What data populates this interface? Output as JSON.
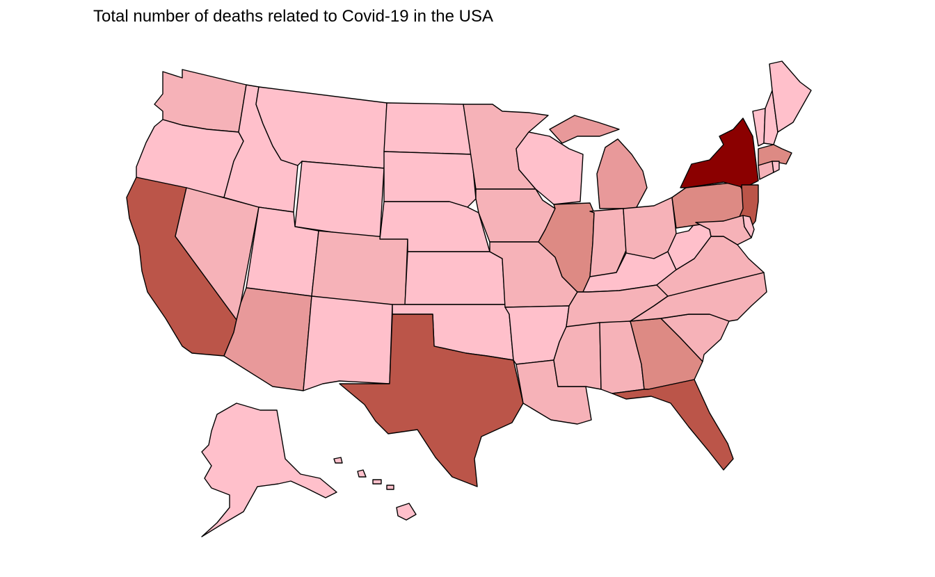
{
  "title": "Total number of deaths related to Covid-19 in the USA",
  "colors": {
    "background": "#ffffff",
    "border": "#000000",
    "scale": {
      "lowest": "#ffc0cb",
      "low": "#f6b2b8",
      "mid": "#e8999a",
      "mid_high": "#dd8a84",
      "high": "#bb5549",
      "highest": "#8b0000"
    }
  },
  "states": {
    "washington": {
      "level": "low"
    },
    "oregon": {
      "level": "lowest"
    },
    "california": {
      "level": "high"
    },
    "nevada": {
      "level": "low"
    },
    "idaho": {
      "level": "lowest"
    },
    "montana": {
      "level": "lowest"
    },
    "wyoming": {
      "level": "lowest"
    },
    "utah": {
      "level": "lowest"
    },
    "arizona": {
      "level": "mid"
    },
    "colorado": {
      "level": "low"
    },
    "new-mexico": {
      "level": "lowest"
    },
    "north-dakota": {
      "level": "lowest"
    },
    "south-dakota": {
      "level": "lowest"
    },
    "nebraska": {
      "level": "lowest"
    },
    "kansas": {
      "level": "lowest"
    },
    "oklahoma": {
      "level": "lowest"
    },
    "texas": {
      "level": "high"
    },
    "minnesota": {
      "level": "low"
    },
    "iowa": {
      "level": "low"
    },
    "missouri": {
      "level": "low"
    },
    "arkansas": {
      "level": "lowest"
    },
    "louisiana": {
      "level": "low"
    },
    "wisconsin": {
      "level": "lowest"
    },
    "illinois": {
      "level": "mid_high"
    },
    "michigan": {
      "level": "mid"
    },
    "indiana": {
      "level": "low"
    },
    "ohio": {
      "level": "low"
    },
    "kentucky": {
      "level": "lowest"
    },
    "tennessee": {
      "level": "low"
    },
    "mississippi": {
      "level": "low"
    },
    "alabama": {
      "level": "low"
    },
    "georgia": {
      "level": "mid_high"
    },
    "florida": {
      "level": "high"
    },
    "south-carolina": {
      "level": "low"
    },
    "north-carolina": {
      "level": "low"
    },
    "virginia": {
      "level": "low"
    },
    "west-virginia": {
      "level": "lowest"
    },
    "pennsylvania": {
      "level": "mid_high"
    },
    "new-york": {
      "level": "highest"
    },
    "new-jersey": {
      "level": "high"
    },
    "maryland": {
      "level": "low"
    },
    "delaware": {
      "level": "lowest"
    },
    "vermont": {
      "level": "lowest"
    },
    "new-hampshire": {
      "level": "lowest"
    },
    "maine": {
      "level": "lowest"
    },
    "massachusetts": {
      "level": "mid_high"
    },
    "connecticut": {
      "level": "low"
    },
    "rhode-island": {
      "level": "lowest"
    },
    "alaska": {
      "level": "lowest"
    },
    "hawaii": {
      "level": "lowest"
    }
  }
}
